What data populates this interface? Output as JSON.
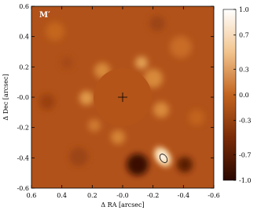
{
  "chart_data": {
    "type": "image",
    "title": "M′",
    "x_label": "Δ RA [arcsec]",
    "y_label": "Δ Dec [arcsec]",
    "xlim": [
      0.6,
      -0.6
    ],
    "ylim": [
      -0.6,
      0.6
    ],
    "xticks": [
      0.6,
      0.4,
      0.2,
      {
        "value": 0,
        "label": "-0.0"
      },
      -0.2,
      -0.4,
      -0.6
    ],
    "yticks": [
      -0.6,
      -0.4,
      -0.2,
      {
        "value": 0,
        "label": "-0.0"
      },
      0.2,
      0.4,
      0.6
    ],
    "colorbar_lim": [
      -1,
      1
    ],
    "colorbar_ticks": [
      {
        "value": 1,
        "label": "1.0"
      },
      0.7,
      0.3,
      {
        "value": 0,
        "label": "0.0"
      },
      -0.3,
      -0.7,
      {
        "value": -1,
        "label": "-1.0"
      }
    ]
  }
}
